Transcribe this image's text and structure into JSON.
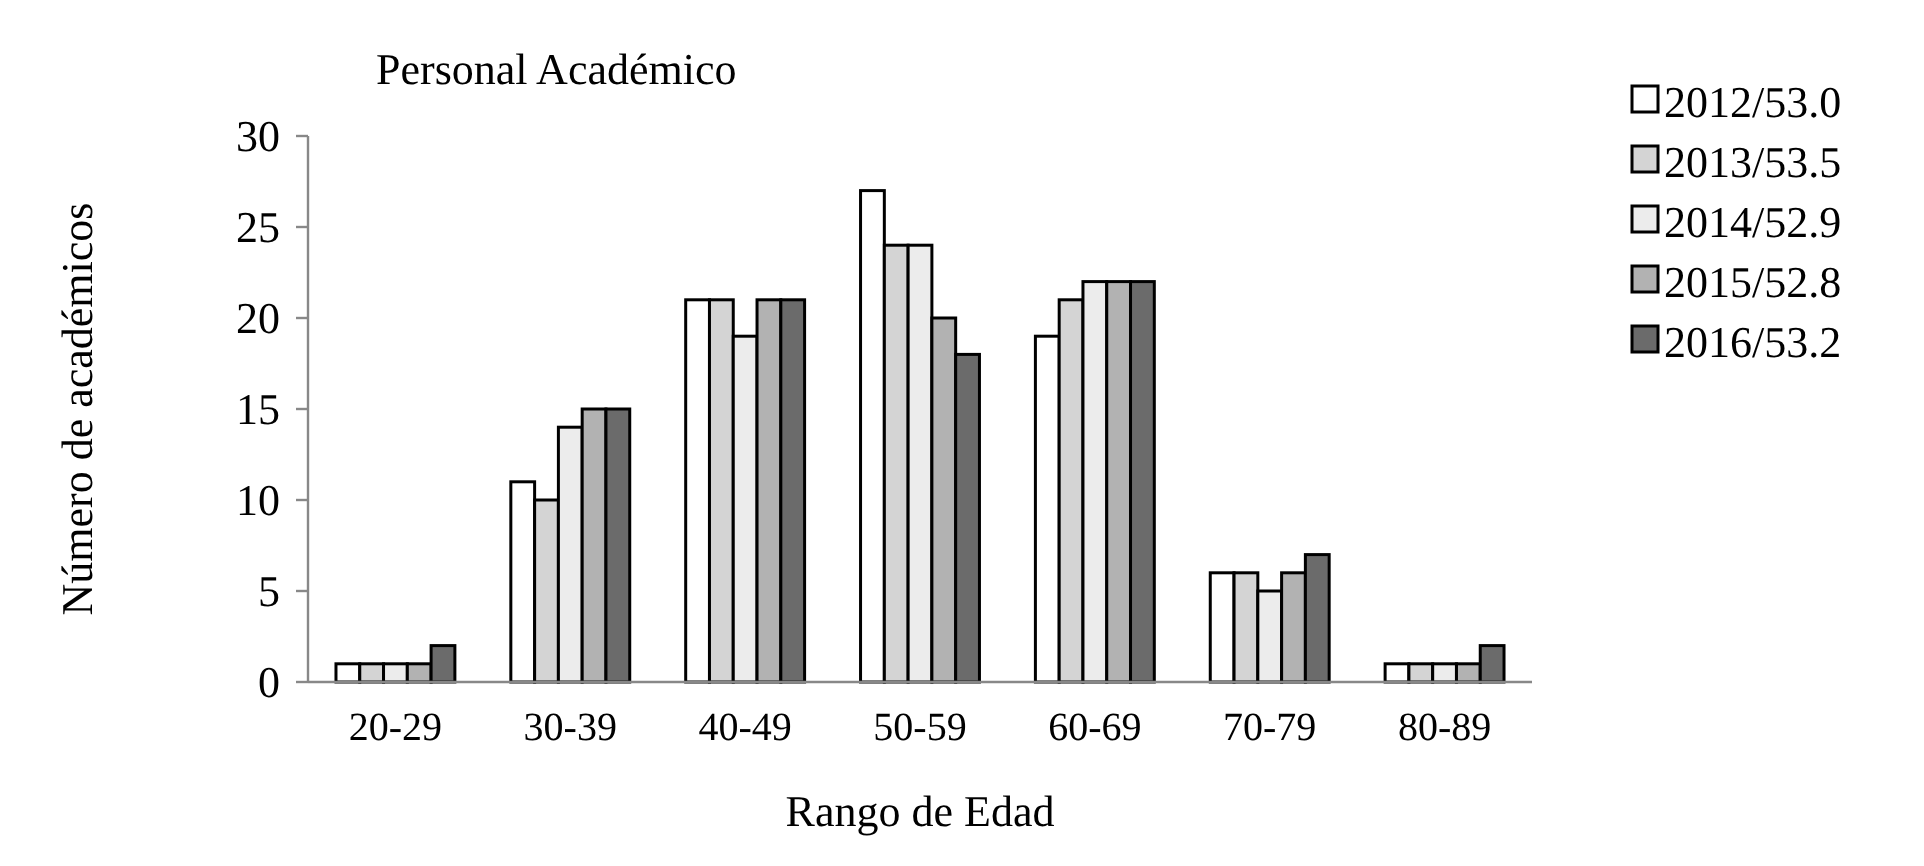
{
  "chart_data": {
    "type": "bar",
    "title": "Personal Académico",
    "xlabel": "Rango de Edad",
    "ylabel": "Número de académicos",
    "categories": [
      "20-29",
      "30-39",
      "40-49",
      "50-59",
      "60-69",
      "70-79",
      "80-89"
    ],
    "series": [
      {
        "name": "2012/53.0",
        "color": "#ffffff",
        "values": [
          1,
          11,
          21,
          27,
          19,
          6,
          1
        ]
      },
      {
        "name": "2013/53.5",
        "color": "#d4d4d4",
        "values": [
          1,
          10,
          21,
          24,
          21,
          6,
          1
        ]
      },
      {
        "name": "2014/52.9",
        "color": "#ececec",
        "values": [
          1,
          14,
          19,
          24,
          22,
          5,
          1
        ]
      },
      {
        "name": "2015/52.8",
        "color": "#b2b2b2",
        "values": [
          1,
          15,
          21,
          20,
          22,
          6,
          1
        ]
      },
      {
        "name": "2016/53.2",
        "color": "#6b6b6b",
        "values": [
          2,
          15,
          21,
          18,
          22,
          7,
          2
        ]
      }
    ],
    "ylim": [
      0,
      30
    ],
    "yticks": [
      0,
      5,
      10,
      15,
      20,
      25,
      30
    ],
    "legend": "right",
    "grid": false
  }
}
